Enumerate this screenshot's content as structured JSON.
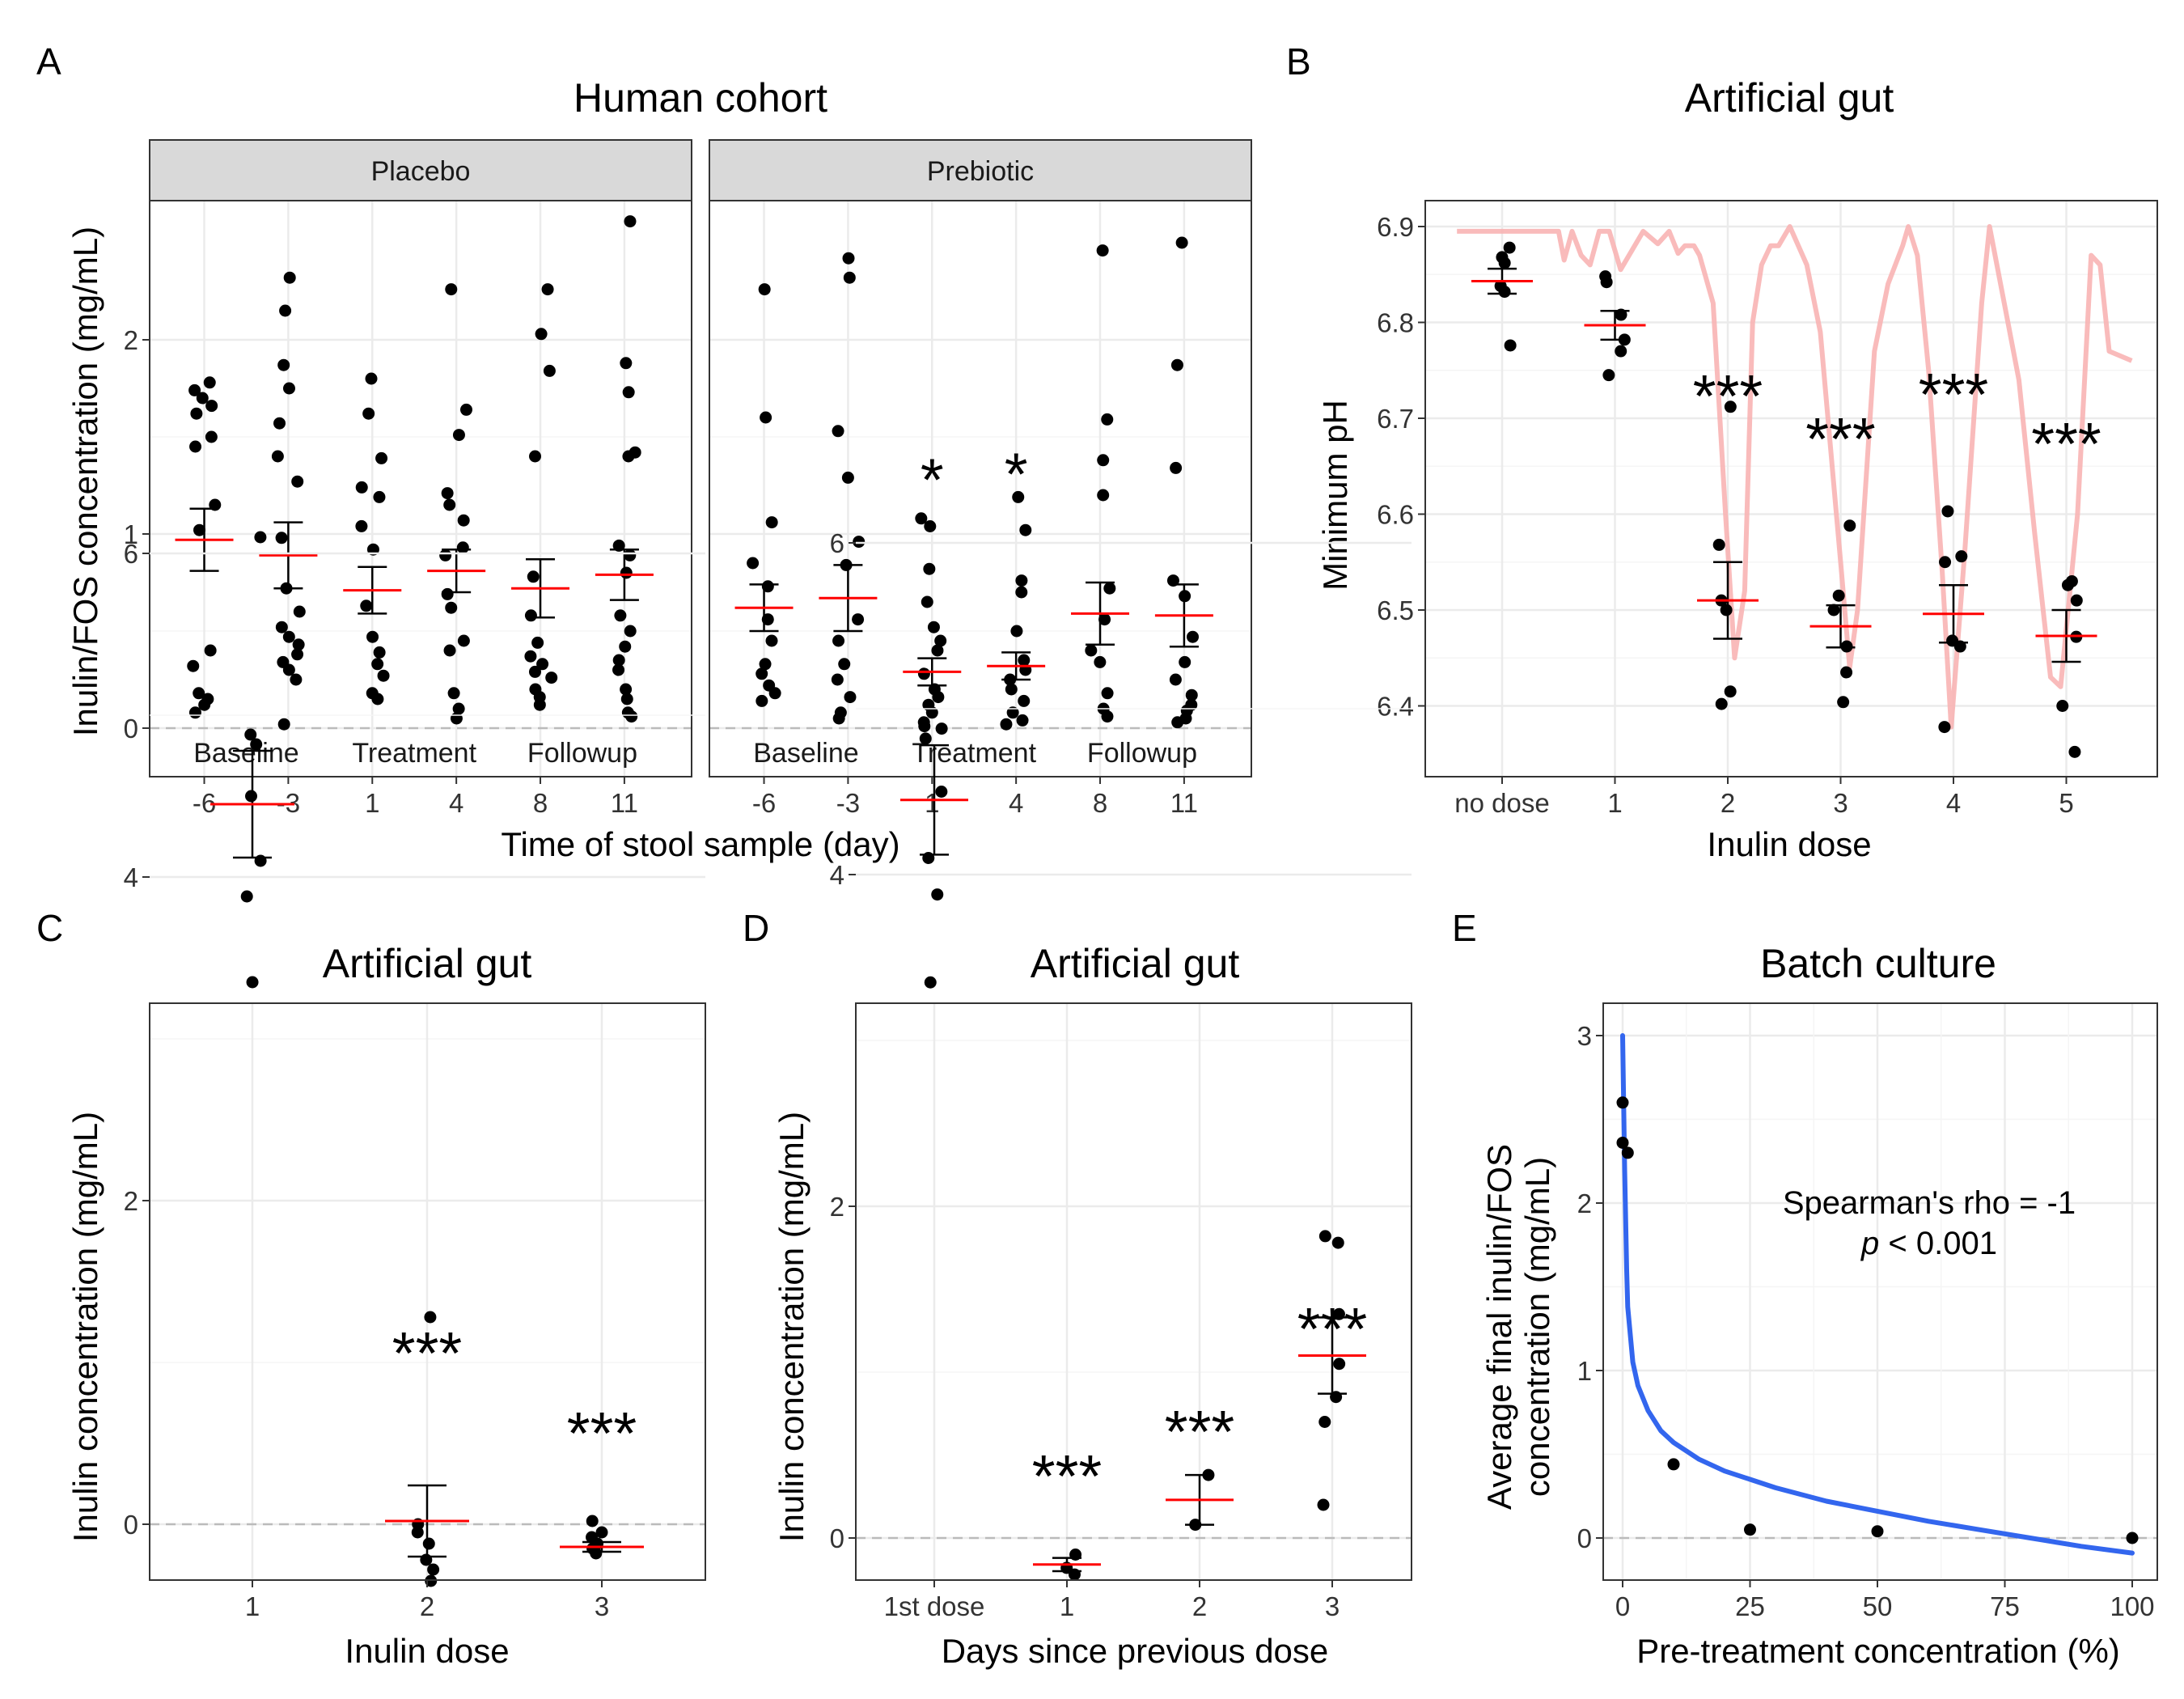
{
  "figure": {
    "panels": [
      {
        "letter": "A",
        "title": "Human cohort"
      },
      {
        "letter": "B",
        "title": "Artificial gut"
      },
      {
        "letter": "C",
        "title": "Artificial gut"
      },
      {
        "letter": "D",
        "title": "Artificial gut"
      },
      {
        "letter": "E",
        "title": "Batch culture"
      }
    ]
  },
  "chart_data": [
    {
      "id": "A",
      "type": "scatter",
      "title": "Human cohort",
      "xlabel": "Time of stool sample (day)",
      "ylabel": "Inulin/FOS concentration (mg/mL)",
      "ylim": [
        -0.23,
        2.73
      ],
      "yticks": [
        0,
        1,
        2
      ],
      "grid": true,
      "reference_line": 0,
      "facets": [
        {
          "name": "Placebo",
          "categories": [
            "-6",
            "-3",
            "1",
            "4",
            "8",
            "11"
          ],
          "phase_labels": [
            "Baseline",
            "Treatment",
            "Followup"
          ],
          "points": [
            [
              1.78,
              1.74,
              1.7,
              1.66,
              1.62,
              1.5,
              1.45,
              1.15,
              1.02,
              0.4,
              0.32,
              0.18,
              0.15,
              0.12,
              0.08
            ],
            [
              2.32,
              2.15,
              1.87,
              1.75,
              1.57,
              1.4,
              1.27,
              0.98,
              0.72,
              0.6,
              0.52,
              0.47,
              0.43,
              0.38,
              0.34,
              0.3,
              0.25,
              0.02
            ],
            [
              1.8,
              1.62,
              1.39,
              1.24,
              1.19,
              1.04,
              0.92,
              0.63,
              0.47,
              0.39,
              0.33,
              0.27,
              0.18,
              0.15
            ],
            [
              2.26,
              1.64,
              1.51,
              1.21,
              1.15,
              1.07,
              0.93,
              0.89,
              0.69,
              0.62,
              0.45,
              0.4,
              0.18,
              0.1,
              0.05
            ],
            [
              2.26,
              2.03,
              1.84,
              1.4,
              0.78,
              0.58,
              0.44,
              0.37,
              0.33,
              0.29,
              0.26,
              0.2,
              0.16,
              0.12
            ],
            [
              2.61,
              1.88,
              1.73,
              1.42,
              1.4,
              0.94,
              0.89,
              0.8,
              0.58,
              0.5,
              0.42,
              0.35,
              0.3,
              0.2,
              0.15,
              0.08,
              0.06
            ]
          ],
          "means": [
            0.97,
            0.89,
            0.71,
            0.81,
            0.72,
            0.79
          ],
          "se": [
            0.16,
            0.17,
            0.12,
            0.11,
            0.15,
            0.13
          ],
          "stars": [
            "",
            "",
            "",
            "",
            "",
            ""
          ]
        },
        {
          "name": "Prebiotic",
          "categories": [
            "-6",
            "-3",
            "1",
            "4",
            "8",
            "11"
          ],
          "phase_labels": [
            "Baseline",
            "Treatment",
            "Followup"
          ],
          "points": [
            [
              2.26,
              1.6,
              1.06,
              0.85,
              0.73,
              0.56,
              0.45,
              0.33,
              0.28,
              0.22,
              0.18,
              0.14
            ],
            [
              2.42,
              2.32,
              1.53,
              1.29,
              0.96,
              0.84,
              0.56,
              0.45,
              0.33,
              0.25,
              0.16,
              0.08,
              0.05
            ],
            [
              1.08,
              0.82,
              0.65,
              0.52,
              0.45,
              0.4,
              0.28,
              0.2,
              0.16,
              0.12,
              0.08,
              0.03,
              0.01
            ],
            [
              1.19,
              1.02,
              0.76,
              0.7,
              0.5,
              0.35,
              0.3,
              0.25,
              0.2,
              0.14,
              0.08,
              0.04,
              0.02
            ],
            [
              2.46,
              1.59,
              1.38,
              1.2,
              0.72,
              0.56,
              0.4,
              0.34,
              0.18,
              0.1,
              0.06
            ],
            [
              2.5,
              1.87,
              1.34,
              0.76,
              0.68,
              0.47,
              0.34,
              0.25,
              0.17,
              0.12,
              0.09,
              0.05,
              0.03
            ]
          ],
          "means": [
            0.62,
            0.67,
            0.29,
            0.32,
            0.59,
            0.58
          ],
          "se": [
            0.12,
            0.17,
            0.07,
            0.07,
            0.16,
            0.16
          ],
          "stars": [
            "",
            "",
            "*",
            "*",
            "",
            ""
          ]
        }
      ]
    },
    {
      "id": "B",
      "type": "scatter",
      "title": "Artificial gut",
      "xlabel": "Inulin dose",
      "ylabel": "Minimum pH",
      "categories": [
        "no dose",
        "1",
        "2",
        "3",
        "4",
        "5"
      ],
      "ylim": [
        6.33,
        6.925
      ],
      "yticks": [
        6.4,
        6.5,
        6.6,
        6.7,
        6.8,
        6.9
      ],
      "grid": true,
      "points": [
        [
          6.878,
          6.868,
          6.862,
          6.838,
          6.832,
          6.776
        ],
        [
          6.848,
          6.842,
          6.808,
          6.782,
          6.77,
          6.745
        ],
        [
          6.712,
          6.568,
          6.51,
          6.5,
          6.415,
          6.402
        ],
        [
          6.588,
          6.515,
          6.5,
          6.462,
          6.435,
          6.404
        ],
        [
          6.603,
          6.556,
          6.55,
          6.468,
          6.462,
          6.378
        ],
        [
          6.53,
          6.526,
          6.51,
          6.472,
          6.4,
          6.352
        ]
      ],
      "means": [
        6.843,
        6.797,
        6.51,
        6.483,
        6.496,
        6.473
      ],
      "se": [
        0.013,
        0.015,
        0.04,
        0.022,
        0.03,
        0.027
      ],
      "stars": [
        "",
        "",
        "***",
        "***",
        "***",
        "***"
      ],
      "ph_trace": {
        "color": "#f8b4b4",
        "points": [
          [
            -0.4,
            6.895
          ],
          [
            0.5,
            6.895
          ],
          [
            0.55,
            6.865
          ],
          [
            0.62,
            6.895
          ],
          [
            0.7,
            6.87
          ],
          [
            0.78,
            6.86
          ],
          [
            0.86,
            6.895
          ],
          [
            0.95,
            6.895
          ],
          [
            1.05,
            6.855
          ],
          [
            1.25,
            6.895
          ],
          [
            1.38,
            6.882
          ],
          [
            1.48,
            6.895
          ],
          [
            1.56,
            6.872
          ],
          [
            1.62,
            6.88
          ],
          [
            1.7,
            6.88
          ],
          [
            1.75,
            6.87
          ],
          [
            1.87,
            6.82
          ],
          [
            1.98,
            6.6
          ],
          [
            2.06,
            6.45
          ],
          [
            2.15,
            6.52
          ],
          [
            2.22,
            6.8
          ],
          [
            2.3,
            6.86
          ],
          [
            2.38,
            6.88
          ],
          [
            2.45,
            6.88
          ],
          [
            2.55,
            6.9
          ],
          [
            2.7,
            6.86
          ],
          [
            2.82,
            6.79
          ],
          [
            3.0,
            6.55
          ],
          [
            3.08,
            6.44
          ],
          [
            3.15,
            6.5
          ],
          [
            3.3,
            6.77
          ],
          [
            3.42,
            6.84
          ],
          [
            3.55,
            6.88
          ],
          [
            3.6,
            6.9
          ],
          [
            3.68,
            6.87
          ],
          [
            3.78,
            6.75
          ],
          [
            3.9,
            6.54
          ],
          [
            3.98,
            6.378
          ],
          [
            4.1,
            6.56
          ],
          [
            4.25,
            6.82
          ],
          [
            4.32,
            6.9
          ],
          [
            4.45,
            6.82
          ],
          [
            4.58,
            6.74
          ],
          [
            4.72,
            6.58
          ],
          [
            4.86,
            6.43
          ],
          [
            4.95,
            6.42
          ],
          [
            5.1,
            6.6
          ],
          [
            5.22,
            6.87
          ],
          [
            5.3,
            6.86
          ],
          [
            5.38,
            6.77
          ],
          [
            5.58,
            6.76
          ]
        ]
      }
    },
    {
      "id": "C",
      "type": "scatter",
      "title": "Artificial gut",
      "xlabel": "Inulin dose",
      "ylabel": "Inulin concentration (mg/mL)",
      "categories": [
        "1",
        "2",
        "3"
      ],
      "ylim": [
        -0.7,
        6.55
      ],
      "yticks": [
        0,
        2,
        4,
        6
      ],
      "grid": true,
      "reference_line": 0,
      "points": [
        [
          6.1,
          4.88,
          4.82,
          4.5,
          4.1,
          3.88,
          3.35
        ],
        [
          1.28,
          0.0,
          -0.05,
          -0.12,
          -0.22,
          -0.28,
          -0.35
        ],
        [
          0.02,
          -0.05,
          -0.08,
          -0.12,
          -0.15,
          -0.18
        ]
      ],
      "means": [
        4.45,
        0.02,
        -0.14
      ],
      "se": [
        0.33,
        0.22,
        0.03
      ],
      "stars": [
        "",
        "***",
        "***"
      ]
    },
    {
      "id": "D",
      "type": "scatter",
      "title": "Artificial gut",
      "xlabel": "Days since previous dose",
      "ylabel": "Inulin concentration (mg/mL)",
      "categories": [
        "1st dose",
        "1",
        "2",
        "3"
      ],
      "ylim": [
        -0.52,
        6.55
      ],
      "yticks": [
        0,
        2,
        4,
        6
      ],
      "grid": true,
      "reference_line": 0,
      "points": [
        [
          6.1,
          4.88,
          4.82,
          4.5,
          4.1,
          3.88,
          3.35
        ],
        [
          -0.1,
          -0.18,
          -0.22
        ],
        [
          0.38,
          0.08
        ],
        [
          1.82,
          1.78,
          1.35,
          1.05,
          0.85,
          0.7,
          0.2
        ]
      ],
      "means": [
        4.45,
        -0.16,
        0.23,
        1.1
      ],
      "se": [
        0.33,
        0.04,
        0.15,
        0.23
      ],
      "stars": [
        "",
        "***",
        "***",
        "***"
      ]
    },
    {
      "id": "E",
      "type": "line",
      "title": "Batch culture",
      "xlabel": "Pre-treatment concentration (%)",
      "ylabel_lines": [
        "Average final inulin/FOS",
        "concentration (mg/mL)"
      ],
      "xlim": [
        -4,
        104.5
      ],
      "ylim": [
        -0.23,
        3.12
      ],
      "xticks": [
        0,
        25,
        50,
        75,
        100
      ],
      "yticks": [
        0,
        1,
        2,
        3
      ],
      "grid": true,
      "reference_line": 0,
      "points": [
        {
          "x": 0,
          "y": 2.6
        },
        {
          "x": 0,
          "y": 2.36
        },
        {
          "x": 1,
          "y": 2.3
        },
        {
          "x": 10,
          "y": 0.44
        },
        {
          "x": 25,
          "y": 0.05
        },
        {
          "x": 50,
          "y": 0.04
        },
        {
          "x": 100,
          "y": 0.0
        }
      ],
      "fit_color": "#3366ee",
      "fit": [
        [
          0,
          3.0
        ],
        [
          0.4,
          2.2
        ],
        [
          0.8,
          1.6
        ],
        [
          1,
          1.38
        ],
        [
          2,
          1.05
        ],
        [
          3,
          0.91
        ],
        [
          5,
          0.76
        ],
        [
          7.5,
          0.64
        ],
        [
          10,
          0.57
        ],
        [
          15,
          0.47
        ],
        [
          20,
          0.4
        ],
        [
          25,
          0.35
        ],
        [
          30,
          0.3
        ],
        [
          40,
          0.22
        ],
        [
          50,
          0.16
        ],
        [
          60,
          0.1
        ],
        [
          70,
          0.05
        ],
        [
          80,
          0.0
        ],
        [
          90,
          -0.05
        ],
        [
          100,
          -0.09
        ]
      ],
      "annotation": {
        "line1": "Spearman's rho = -1",
        "p_symbol": "p",
        "p_rest": " < 0.001"
      }
    }
  ],
  "colors": {
    "points": "#000000",
    "mean_line": "#ff0000",
    "grid_major": "#ebebeb",
    "grid_minor": "#f5f5f5",
    "strip_fill": "#d9d9d9",
    "reference": "#bbbbbb"
  }
}
